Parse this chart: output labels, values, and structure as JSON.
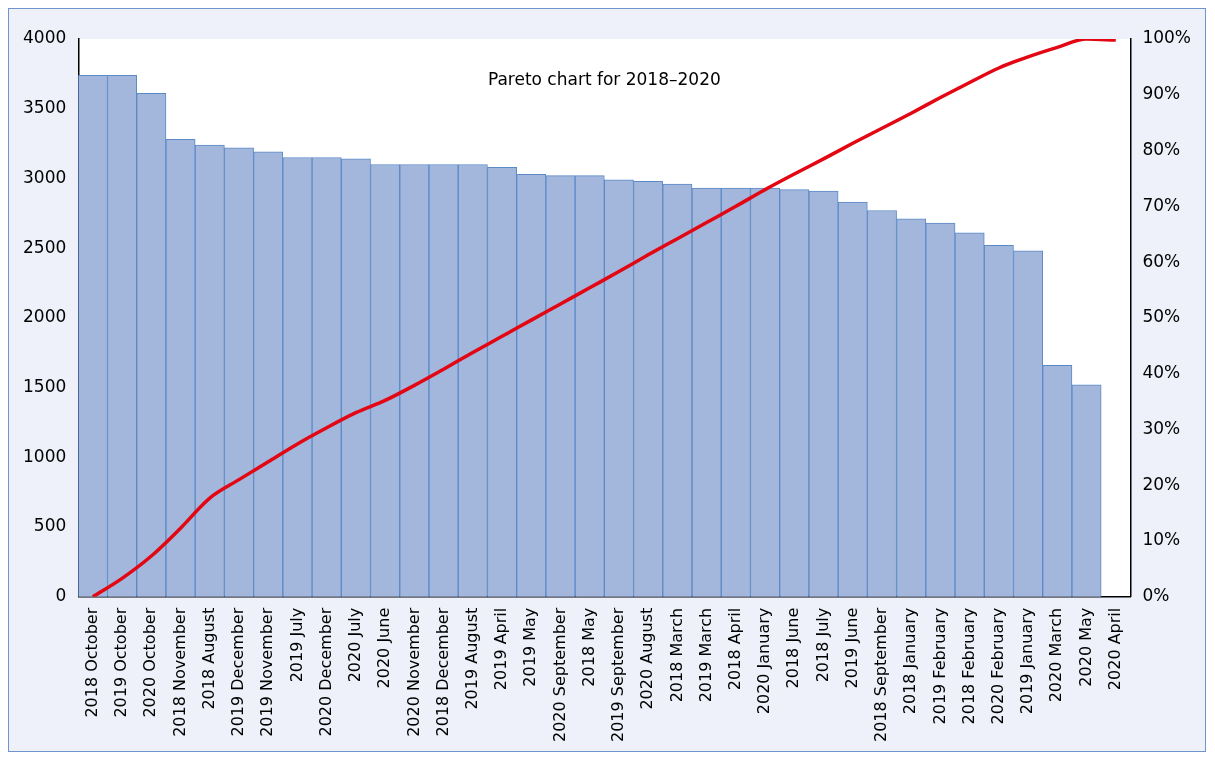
{
  "chart_data": {
    "type": "bar",
    "title": "Pareto chart for 2018–2020",
    "categories": [
      "2018 October",
      "2019 October",
      "2020 October",
      "2018 November",
      "2018 August",
      "2019 December",
      "2019 November",
      "2019 July",
      "2020 December",
      "2020 July",
      "2020 June",
      "2020 November",
      "2018 December",
      "2019 August",
      "2019 April",
      "2019 May",
      "2020 September",
      "2018 May",
      "2019 September",
      "2020 August",
      "2018 March",
      "2019 March",
      "2018 April",
      "2020 January",
      "2018 June",
      "2018 July",
      "2019 June",
      "2018 September",
      "2018 January",
      "2019 February",
      "2018 February",
      "2020 February",
      "2019 January",
      "2020 March",
      "2020 May",
      "2020 April"
    ],
    "series": [
      {
        "color": "#a3b6dc",
        "values": [
          3740,
          3740,
          3610,
          3280,
          3240,
          3220,
          3190,
          3150,
          3150,
          3140,
          3100,
          3100,
          3100,
          3100,
          3080,
          3030,
          3020,
          3020,
          2990,
          2980,
          2960,
          2930,
          2930,
          2930,
          2920,
          2910,
          2830,
          2770,
          2710,
          2680,
          2610,
          2520,
          2480,
          1660,
          1520,
          null
        ]
      },
      {
        "type": "line",
        "axis": "y2",
        "color": "#e30613",
        "marker": "none",
        "line_style": "solid",
        "values": [
          0,
          3.3,
          7.3,
          12.3,
          17.7,
          21.0,
          24.2,
          27.4,
          30.3,
          33.0,
          35.2,
          37.9,
          40.8,
          43.8,
          46.7,
          49.6,
          52.5,
          55.4,
          58.3,
          61.3,
          64.2,
          67.1,
          70.0,
          73.0,
          75.8,
          78.5,
          81.3,
          84.0,
          86.7,
          89.5,
          92.2,
          94.8,
          96.8,
          98.5,
          100,
          99.8
        ]
      }
    ],
    "ylim": [
      0,
      4000
    ],
    "yticks": [
      0,
      500,
      1000,
      1500,
      2000,
      2500,
      3000,
      3500,
      4000
    ],
    "y2lim": [
      0,
      100
    ],
    "y2ticks": [
      {
        "value": 0,
        "label": "0%"
      },
      {
        "value": 10,
        "label": "10%"
      },
      {
        "value": 20,
        "label": "20%"
      },
      {
        "value": 30,
        "label": "30%"
      },
      {
        "value": 40,
        "label": "40%"
      },
      {
        "value": 50,
        "label": "50%"
      },
      {
        "value": 60,
        "label": "60%"
      },
      {
        "value": 70,
        "label": "70%"
      },
      {
        "value": 80,
        "label": "80%"
      },
      {
        "value": 90,
        "label": "90%"
      },
      {
        "value": 100,
        "label": "100%"
      }
    ],
    "grid": false,
    "legend": false
  }
}
